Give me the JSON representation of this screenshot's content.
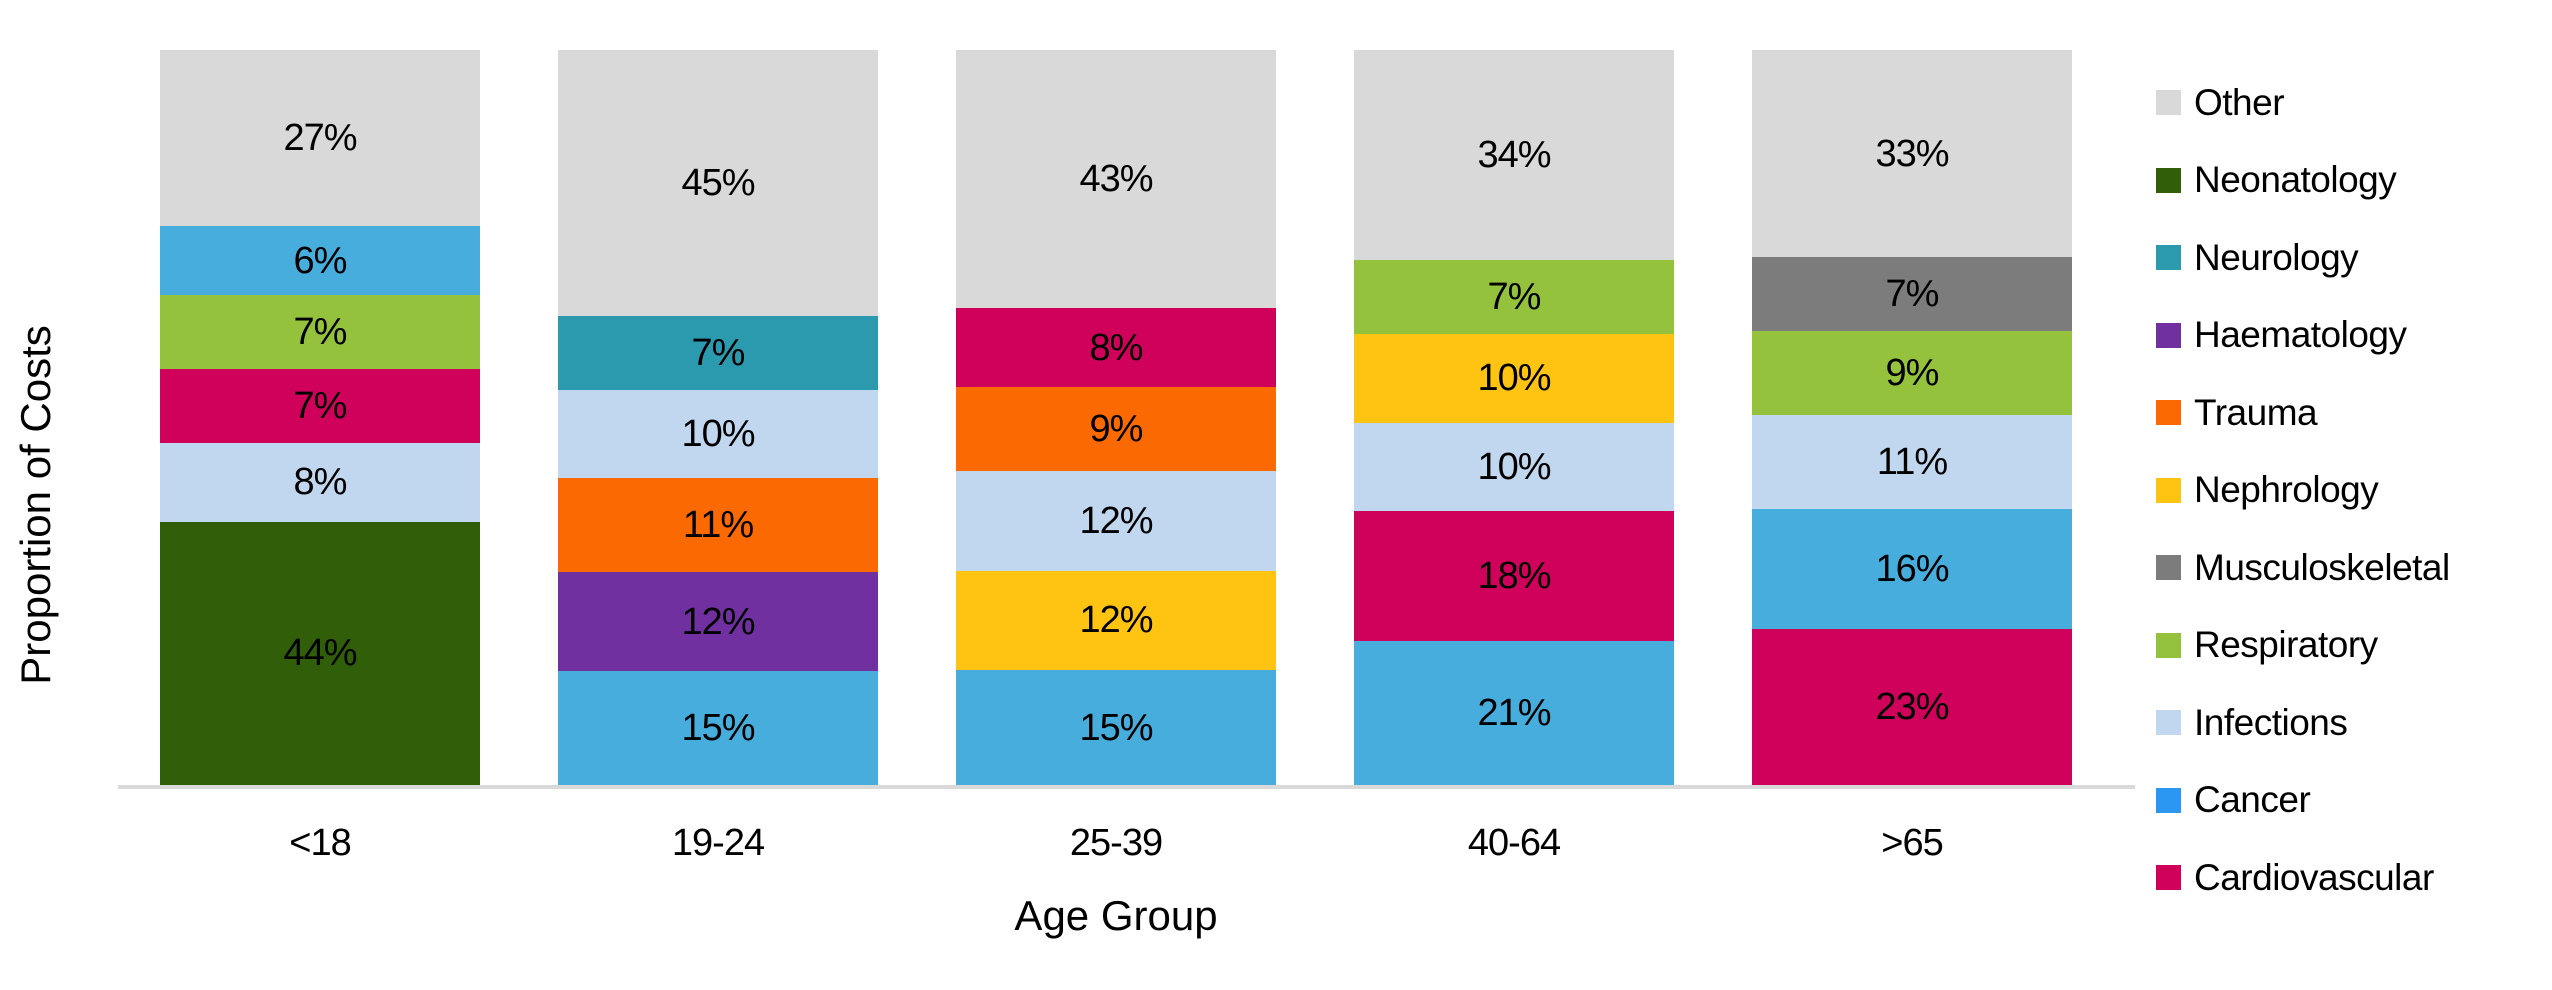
{
  "chart_data": {
    "type": "bar",
    "variant": "100%-stacked-column",
    "title": "",
    "xlabel": "Age Group",
    "ylabel": "Proportion of Costs",
    "unit": "%",
    "grid": false,
    "legend_position": "right",
    "axis_line_color": "#D9D9D9",
    "label_color": "#000000",
    "categories": [
      "<18",
      "19-24",
      "25-39",
      "40-64",
      ">65"
    ],
    "legend": [
      {
        "label": "Other",
        "color": "#D9D9D9",
        "legend_color": "#D9D9D9"
      },
      {
        "label": "Neonatology",
        "color": "#315E08",
        "legend_color": "#315E08"
      },
      {
        "label": "Neurology",
        "color": "#2B9AAF",
        "legend_color": "#2B9AAF"
      },
      {
        "label": "Haematology",
        "color": "#7030A0",
        "legend_color": "#7030A0"
      },
      {
        "label": "Trauma",
        "color": "#FB6A02",
        "legend_color": "#FB6A02"
      },
      {
        "label": "Nephrology",
        "color": "#FFC412",
        "legend_color": "#FFC412"
      },
      {
        "label": "Musculoskeletal",
        "color": "#7C7C7C",
        "legend_color": "#7C7C7C"
      },
      {
        "label": "Respiratory",
        "color": "#95C23D",
        "legend_color": "#95C23D"
      },
      {
        "label": "Infections",
        "color": "#C1D7F0",
        "legend_color": "#C1D7F0"
      },
      {
        "label": "Cancer",
        "color": "#46ADDC",
        "legend_color": "#2C97F2"
      },
      {
        "label": "Cardiovascular",
        "color": "#D0015B",
        "legend_color": "#D0015B"
      }
    ],
    "bars": [
      {
        "category": "<18",
        "segments_top_to_bottom": [
          {
            "name": "Other",
            "value": 27,
            "label": "27%"
          },
          {
            "name": "Cancer",
            "value": 6,
            "label": "6%"
          },
          {
            "name": "Respiratory",
            "value": 7,
            "label": "7%"
          },
          {
            "name": "Cardiovascular",
            "value": 7,
            "label": "7%"
          },
          {
            "name": "Infections",
            "value": 8,
            "label": "8%"
          },
          {
            "name": "Neonatology",
            "value": 44,
            "label": "44%"
          }
        ]
      },
      {
        "category": "19-24",
        "segments_top_to_bottom": [
          {
            "name": "Other",
            "value": 45,
            "label": "45%"
          },
          {
            "name": "Neurology",
            "value": 7,
            "label": "7%"
          },
          {
            "name": "Infections",
            "value": 10,
            "label": "10%"
          },
          {
            "name": "Trauma",
            "value": 11,
            "label": "11%"
          },
          {
            "name": "Haematology",
            "value": 12,
            "label": "12%"
          },
          {
            "name": "Cancer",
            "value": 15,
            "label": "15%"
          }
        ]
      },
      {
        "category": "25-39",
        "segments_top_to_bottom": [
          {
            "name": "Other",
            "value": 43,
            "label": "43%"
          },
          {
            "name": "Cardiovascular",
            "value": 8,
            "label": "8%"
          },
          {
            "name": "Trauma",
            "value": 9,
            "label": "9%"
          },
          {
            "name": "Infections",
            "value": 12,
            "label": "12%"
          },
          {
            "name": "Nephrology",
            "value": 12,
            "label": "12%"
          },
          {
            "name": "Cancer",
            "value": 15,
            "label": "15%"
          }
        ]
      },
      {
        "category": "40-64",
        "segments_top_to_bottom": [
          {
            "name": "Other",
            "value": 34,
            "label": "34%"
          },
          {
            "name": "Respiratory",
            "value": 7,
            "label": "7%"
          },
          {
            "name": "Nephrology",
            "value": 10,
            "label": "10%"
          },
          {
            "name": "Infections",
            "value": 10,
            "label": "10%"
          },
          {
            "name": "Cardiovascular",
            "value": 18,
            "label": "18%"
          },
          {
            "name": "Cancer",
            "value": 21,
            "label": "21%"
          }
        ]
      },
      {
        "category": ">65",
        "segments_top_to_bottom": [
          {
            "name": "Other",
            "value": 33,
            "label": "33%"
          },
          {
            "name": "Musculoskeletal",
            "value": 7,
            "label": "7%"
          },
          {
            "name": "Respiratory",
            "value": 9,
            "label": "9%"
          },
          {
            "name": "Infections",
            "value": 11,
            "label": "11%"
          },
          {
            "name": "Cancer",
            "value": 16,
            "label": "16%"
          },
          {
            "name": "Cardiovascular",
            "value": 23,
            "label": "23%"
          }
        ]
      }
    ]
  }
}
